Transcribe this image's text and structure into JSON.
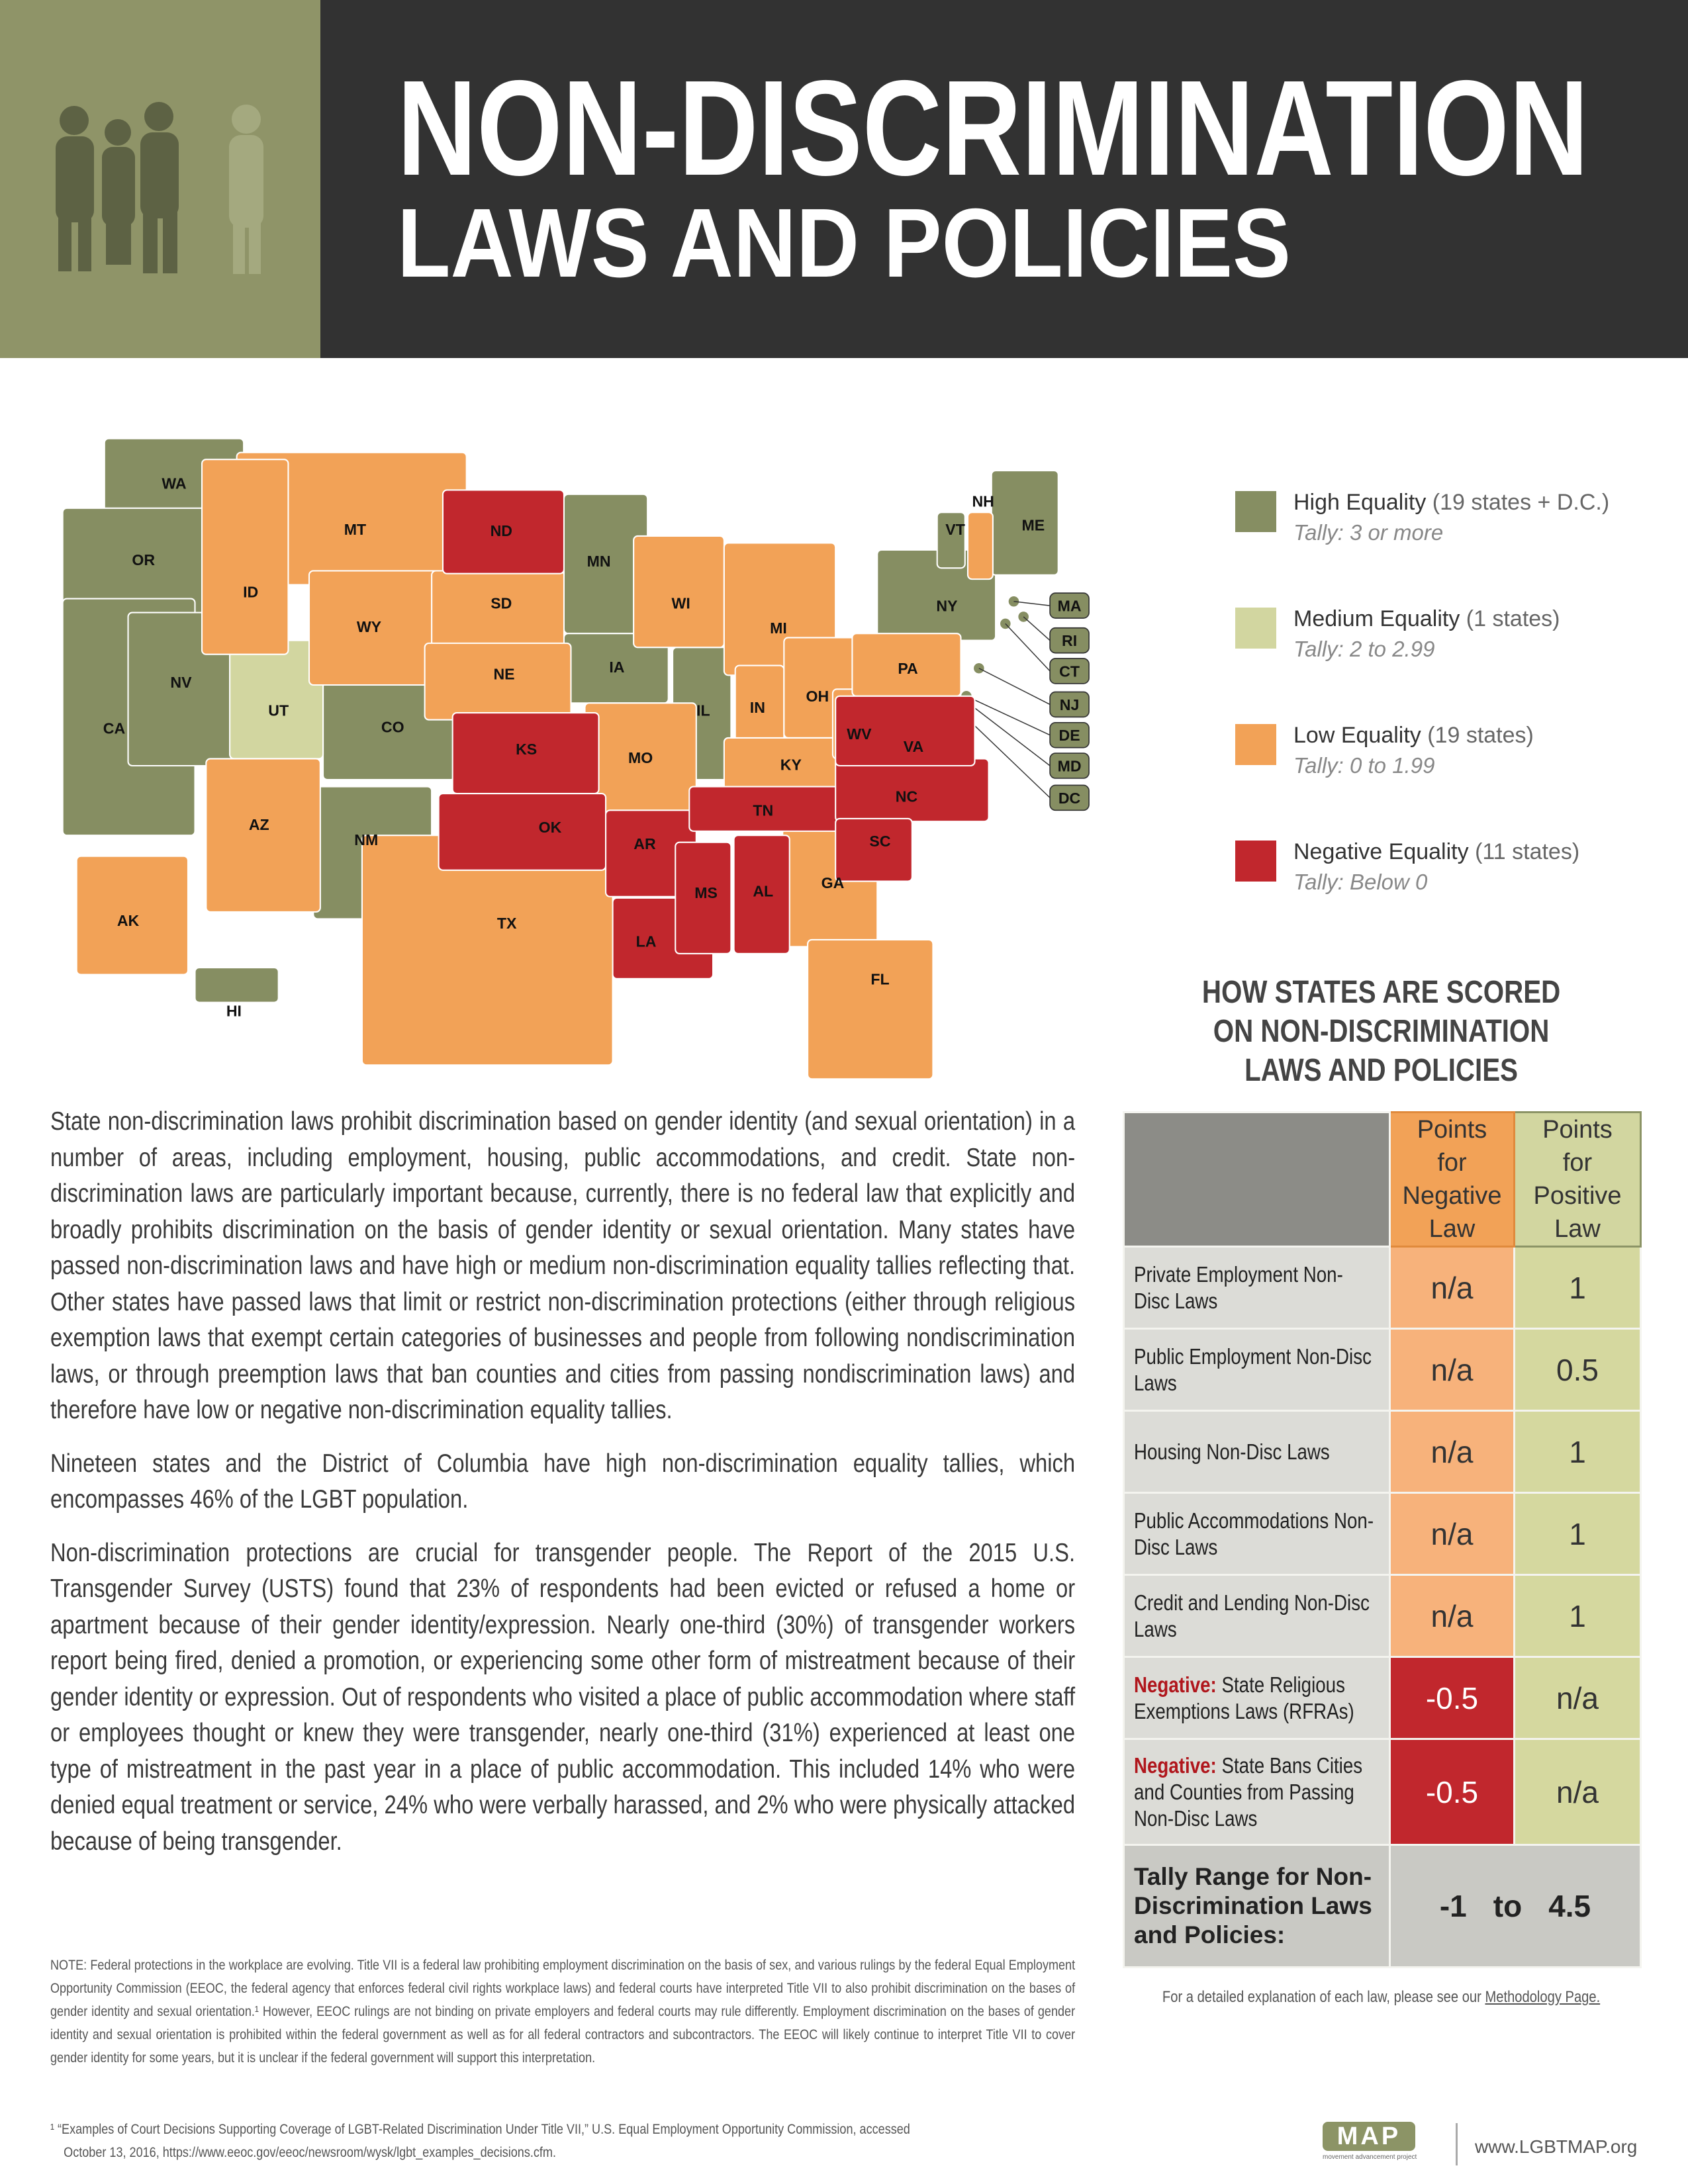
{
  "header": {
    "title_line1": "NON-DISCRIMINATION",
    "title_line2": "LAWS AND POLICIES"
  },
  "legend": {
    "items": [
      {
        "label": "High Equality",
        "count": "(19 states + D.C.)",
        "tally": "Tally: 3 or more",
        "color": "#868e62",
        "states": [
          "WA",
          "OR",
          "CA",
          "NV",
          "CO",
          "NM",
          "MN",
          "IA",
          "IL",
          "NY",
          "VT",
          "ME",
          "MA",
          "RI",
          "CT",
          "NJ",
          "DE",
          "MD",
          "DC",
          "HI"
        ]
      },
      {
        "label": "Medium Equality",
        "count": "(1 states)",
        "tally": "Tally: 2 to 2.99",
        "color": "#d2d6a0",
        "states": [
          "UT"
        ]
      },
      {
        "label": "Low Equality",
        "count": "(19 states)",
        "tally": "Tally: 0 to 1.99",
        "color": "#f2a257",
        "states": [
          "MT",
          "ID",
          "WY",
          "AZ",
          "SD",
          "NE",
          "MO",
          "WI",
          "MI",
          "IN",
          "OH",
          "KY",
          "WV",
          "PA",
          "NH",
          "GA",
          "TX",
          "FL",
          "AK"
        ]
      },
      {
        "label": "Negative Equality",
        "count": "(11 states)",
        "tally": "Tally: Below 0",
        "color": "#c1272d",
        "states": [
          "ND",
          "KS",
          "OK",
          "AR",
          "LA",
          "MS",
          "AL",
          "TN",
          "NC",
          "SC",
          "VA"
        ]
      }
    ]
  },
  "body": {
    "paragraphs": [
      "State non-discrimination laws prohibit discrimination based on gender identity (and sexual orientation) in a number of areas, including employment, housing, public accommodations, and credit. State non-discrimination laws are particularly important because, currently, there is no federal law that explicitly and broadly prohibits discrimination on the basis of gender identity or sexual orientation. Many states have passed non-discrimination laws and have high or medium non-discrimination equality tallies reflecting that. Other states have passed laws that limit or restrict non-discrimination protections (either through religious exemption laws that exempt certain categories of businesses and people from following nondiscrimination laws, or through preemption laws that ban counties and cities from passing nondiscrimination laws) and therefore have low or negative non-discrimination equality tallies.",
      "Nineteen states and the District of Columbia have high non-discrimination equality tallies, which encompasses 46% of the LGBT population.",
      "Non-discrimination protections are crucial for transgender people. The Report of the 2015 U.S. Transgender Survey (USTS) found that 23% of respondents had been evicted or refused a home or apartment because of their gender identity/expression. Nearly one-third (30%) of transgender workers report being fired, denied a promotion, or experiencing some other form of mistreatment because of their gender identity or expression. Out of respondents who visited a place of public accommodation where staff or employees thought or knew they were transgender, nearly one-third (31%) experienced at least one type of mistreatment in the past year in a place of public accommodation. This included 14% who were denied equal treatment or service, 24% who were verbally harassed, and 2% who were physically attacked because of being transgender."
    ]
  },
  "note": "NOTE: Federal protections in the workplace are evolving. Title VII is a federal law prohibiting employment discrimination on the basis of sex, and various rulings by the federal Equal Employment Opportunity Commission (EEOC, the federal agency that enforces federal civil rights workplace laws) and federal courts have interpreted Title VII to also prohibit discrimination on the bases of gender identity and sexual orientation.¹ However, EEOC rulings are not binding on private employers and federal courts may rule differently. Employment discrimination on the bases of gender identity and sexual orientation is prohibited within the federal government as well as for all federal contractors and subcontractors. The EEOC will likely continue to interpret Title VII to cover gender identity for some years, but it is unclear if the federal government will support this interpretation.",
  "footnote": "¹  “Examples of Court Decisions Supporting Coverage of LGBT-Related Discrimination Under Title VII,” U.S. Equal Employment Opportunity Commission, accessed October 13, 2016, https://www.eeoc.gov/eeoc/newsroom/wysk/lgbt_examples_decisions.cfm.",
  "scoring": {
    "title": "HOW STATES ARE SCORED ON NON-DISCRIMINATION LAWS AND POLICIES",
    "columns": [
      "Points for Negative Law",
      "Points for Positive Law"
    ],
    "rows": [
      {
        "label": "Private Employment Non-Disc Laws",
        "negative": "n/a",
        "positive": 1
      },
      {
        "label": "Public Employment Non-Disc Laws",
        "negative": "n/a",
        "positive": 0.5
      },
      {
        "label": "Housing Non-Disc Laws",
        "negative": "n/a",
        "positive": 1
      },
      {
        "label": "Public Accommodations Non-Disc Laws",
        "negative": "n/a",
        "positive": 1
      },
      {
        "label": "Credit and Lending Non-Disc Laws",
        "negative": "n/a",
        "positive": 1
      },
      {
        "prefix": "Negative:",
        "label": "State Religious Exemptions Laws (RFRAs)",
        "negative": -0.5,
        "positive": "n/a"
      },
      {
        "prefix": "Negative:",
        "label": "State Bans Cities and Counties from Passing Non-Disc Laws",
        "negative": -0.5,
        "positive": "n/a"
      }
    ],
    "tally": {
      "label": "Tally Range for Non-Discrimination Laws and Policies:",
      "min": -1,
      "to": "to",
      "max": 4.5
    },
    "methodology": {
      "text": "For a detailed explanation of each law, please see our",
      "link": "Methodology Page."
    }
  },
  "footer": {
    "logo": "MAP",
    "logo_sub": "movement advancement project",
    "url": "www.LGBTMAP.org"
  }
}
